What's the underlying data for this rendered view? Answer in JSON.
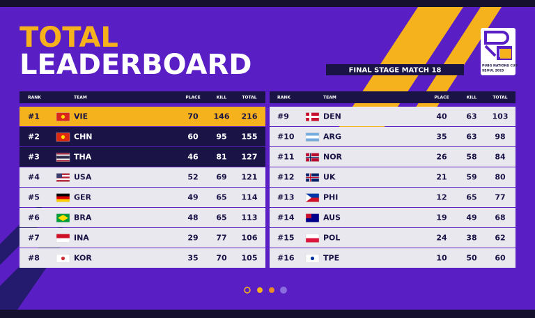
{
  "header": {
    "title_line1": "TOTAL",
    "title_line2": "LEADERBOARD",
    "subtitle": "FINAL STAGE MATCH 18",
    "logo_text": "PUBG NATIONS CUP",
    "logo_subtext": "SEOUL 2025"
  },
  "tables": [
    {
      "columns": [
        "RANK",
        "TEAM",
        "PLACE",
        "KILL",
        "TOTAL"
      ],
      "rows": [
        {
          "rank": "#1",
          "team": "VIE",
          "place": 70,
          "kill": 146,
          "total": 216
        },
        {
          "rank": "#2",
          "team": "CHN",
          "place": 60,
          "kill": 95,
          "total": 155
        },
        {
          "rank": "#3",
          "team": "THA",
          "place": 46,
          "kill": 81,
          "total": 127
        },
        {
          "rank": "#4",
          "team": "USA",
          "place": 52,
          "kill": 69,
          "total": 121
        },
        {
          "rank": "#5",
          "team": "GER",
          "place": 49,
          "kill": 65,
          "total": 114
        },
        {
          "rank": "#6",
          "team": "BRA",
          "place": 48,
          "kill": 65,
          "total": 113
        },
        {
          "rank": "#7",
          "team": "INA",
          "place": 29,
          "kill": 77,
          "total": 106
        },
        {
          "rank": "#8",
          "team": "KOR",
          "place": 35,
          "kill": 70,
          "total": 105
        }
      ]
    },
    {
      "columns": [
        "RANK",
        "TEAM",
        "PLACE",
        "KILL",
        "TOTAL"
      ],
      "rows": [
        {
          "rank": "#9",
          "team": "DEN",
          "place": 40,
          "kill": 63,
          "total": 103
        },
        {
          "rank": "#10",
          "team": "ARG",
          "place": 35,
          "kill": 63,
          "total": 98
        },
        {
          "rank": "#11",
          "team": "NOR",
          "place": 26,
          "kill": 58,
          "total": 84
        },
        {
          "rank": "#12",
          "team": "UK",
          "place": 21,
          "kill": 59,
          "total": 80
        },
        {
          "rank": "#13",
          "team": "PHI",
          "place": 12,
          "kill": 65,
          "total": 77
        },
        {
          "rank": "#14",
          "team": "AUS",
          "place": 19,
          "kill": 49,
          "total": 68
        },
        {
          "rank": "#15",
          "team": "POL",
          "place": 24,
          "kill": 38,
          "total": 62
        },
        {
          "rank": "#16",
          "team": "TPE",
          "place": 10,
          "kill": 50,
          "total": 60
        }
      ]
    }
  ]
}
